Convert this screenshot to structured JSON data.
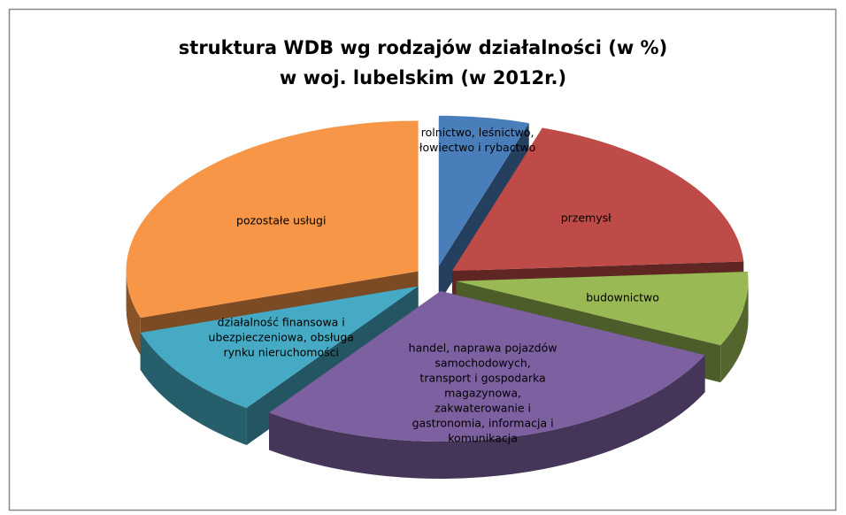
{
  "chart_data": {
    "type": "pie",
    "title": [
      "struktura WDB wg rodzajów działalności (w %)",
      "w woj. lubelskim (w 2012r.)"
    ],
    "categories": [
      "rolnictwo, leśnictwo, łowiectwo i rybactwo",
      "przemysł",
      "budownictwo",
      "handel, naprawa pojazdów samochodowych, transport i gospodarka magazynowa, zakwaterowanie i gastronomia, informacja i komunikacja",
      "działalność finansowa i ubezpieczeniowa, obsługa rynku nieruchomości",
      "pozostałe usługi"
    ],
    "values": [
      5,
      19,
      8,
      28,
      10,
      30
    ],
    "colors": [
      "#4a7ebb",
      "#be4b48",
      "#98b954",
      "#7d60a0",
      "#46aac5",
      "#f79646"
    ]
  }
}
